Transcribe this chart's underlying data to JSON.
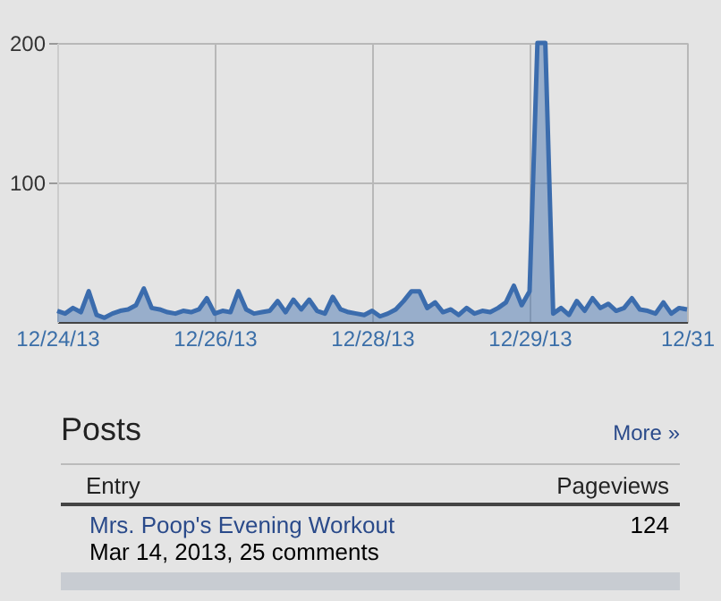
{
  "chart_data": {
    "type": "area",
    "categories": [
      "12/24/13",
      null,
      null,
      null,
      null,
      null,
      null,
      null,
      null,
      null,
      null,
      null,
      null,
      null,
      null,
      null,
      null,
      null,
      null,
      null,
      "12/26/13",
      null,
      null,
      null,
      null,
      null,
      null,
      null,
      null,
      null,
      null,
      null,
      null,
      null,
      null,
      null,
      null,
      null,
      null,
      null,
      "12/28/13",
      null,
      null,
      null,
      null,
      null,
      null,
      null,
      null,
      null,
      null,
      null,
      null,
      null,
      null,
      null,
      null,
      null,
      null,
      null,
      "12/29/13",
      null,
      null,
      null,
      null,
      null,
      null,
      null,
      null,
      null,
      null,
      null,
      null,
      null,
      null,
      null,
      null,
      null,
      null,
      null,
      "12/31"
    ],
    "series": [
      {
        "color": "#3b6cad",
        "values": [
          8,
          6,
          10,
          7,
          22,
          5,
          3,
          6,
          8,
          9,
          12,
          24,
          10,
          9,
          7,
          6,
          8,
          7,
          9,
          17,
          6,
          8,
          7,
          22,
          9,
          6,
          7,
          8,
          15,
          7,
          16,
          9,
          16,
          8,
          6,
          18,
          9,
          7,
          6,
          5,
          8,
          4,
          6,
          9,
          15,
          22,
          22,
          10,
          14,
          7,
          9,
          5,
          10,
          6,
          8,
          7,
          10,
          14,
          26,
          12,
          22,
          200,
          200,
          6,
          10,
          5,
          15,
          8,
          17,
          10,
          13,
          8,
          10,
          17,
          9,
          8,
          6,
          14,
          6,
          10,
          9
        ]
      }
    ],
    "ylim": [
      0,
      200
    ],
    "yticks": [
      100,
      200
    ],
    "grid": true,
    "annotations": [
      "Posts",
      "More »",
      "Entry",
      "Pageviews",
      "Mrs. Poop's Evening Workout",
      "Mar 14, 2013, 25 comments",
      "124"
    ]
  }
}
